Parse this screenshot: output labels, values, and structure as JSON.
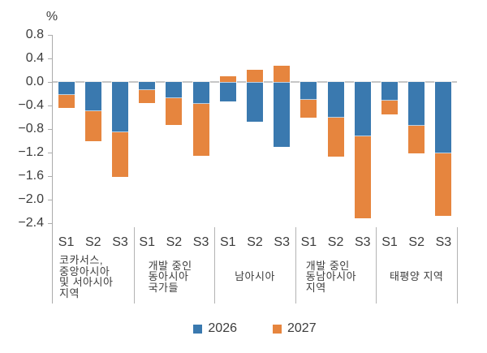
{
  "chart_data": {
    "type": "bar",
    "stacked": true,
    "title": "",
    "unit_label": "%",
    "ylabel": "%",
    "ylim": [
      -2.4,
      0.8
    ],
    "yticks": [
      0.8,
      0.4,
      0.0,
      -0.4,
      -0.8,
      -1.2,
      -1.6,
      -2.0,
      -2.4
    ],
    "grid": "zero-line-only",
    "legend_position": "bottom-center",
    "series": [
      {
        "name": "2026",
        "color": "#3A79AF"
      },
      {
        "name": "2027",
        "color": "#E6853E"
      }
    ],
    "categories_per_group": [
      "S1",
      "S2",
      "S3"
    ],
    "groups": [
      {
        "label_lines": [
          "코카서스,",
          "중앙아시아",
          "및 서아시아",
          "지역"
        ],
        "values": {
          "2026": [
            -0.22,
            -0.5,
            -0.86
          ],
          "2027": [
            -0.22,
            -0.5,
            -0.75
          ]
        }
      },
      {
        "label_lines": [
          "개발 중인",
          "동아시아",
          "국가들"
        ],
        "values": {
          "2026": [
            -0.14,
            -0.28,
            -0.37
          ],
          "2027": [
            -0.22,
            -0.45,
            -0.89
          ]
        }
      },
      {
        "label_lines": [
          "남아시아"
        ],
        "values": {
          "2026": [
            -0.33,
            -0.67,
            -1.11
          ],
          "2027": [
            0.09,
            0.21,
            0.28
          ]
        }
      },
      {
        "label_lines": [
          "개발 중인",
          "동남아시아",
          "지역"
        ],
        "values": {
          "2026": [
            -0.3,
            -0.6,
            -0.92
          ],
          "2027": [
            -0.31,
            -0.67,
            -1.4
          ]
        }
      },
      {
        "label_lines": [
          "태평양 지역"
        ],
        "values": {
          "2026": [
            -0.32,
            -0.74,
            -1.21
          ],
          "2027": [
            -0.23,
            -0.47,
            -1.06
          ]
        }
      }
    ]
  },
  "legend": {
    "items": [
      {
        "label": "2026",
        "color": "#3A79AF"
      },
      {
        "label": "2027",
        "color": "#E6853E"
      }
    ]
  }
}
